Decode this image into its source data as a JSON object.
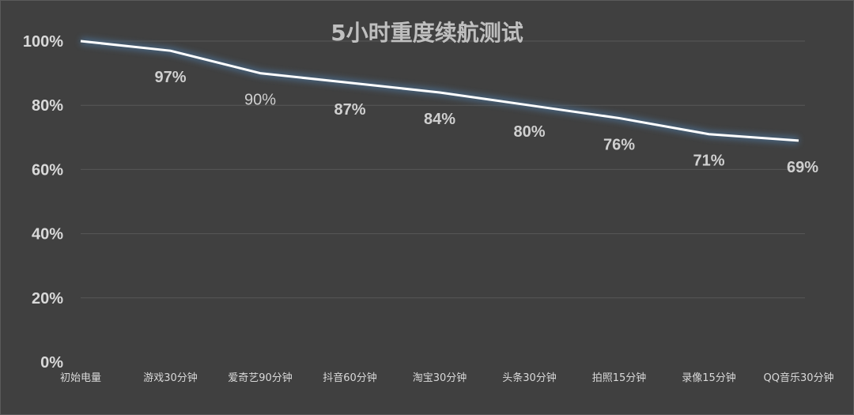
{
  "chart_data": {
    "type": "line",
    "title": "5小时重度续航测试",
    "categories": [
      "初始电量",
      "游戏30分钟",
      "爱奇艺90分钟",
      "抖音60分钟",
      "淘宝30分钟",
      "头条30分钟",
      "拍照15分钟",
      "录像15分钟",
      "QQ音乐30分钟"
    ],
    "series": [
      {
        "values": [
          100,
          97,
          90,
          87,
          84,
          80,
          76,
          71,
          69
        ]
      }
    ],
    "data_labels": [
      "",
      "97%",
      "90%",
      "87%",
      "84%",
      "80%",
      "76%",
      "71%",
      "69%"
    ],
    "yticks": [
      "0%",
      "20%",
      "40%",
      "60%",
      "80%",
      "100%"
    ],
    "ylim": [
      0,
      100
    ],
    "grid": true,
    "legend": "none",
    "colors": {
      "background": "#404040",
      "line": "#ffffff",
      "glow": "#4a6a8a",
      "text": "#d9d9d9"
    }
  }
}
